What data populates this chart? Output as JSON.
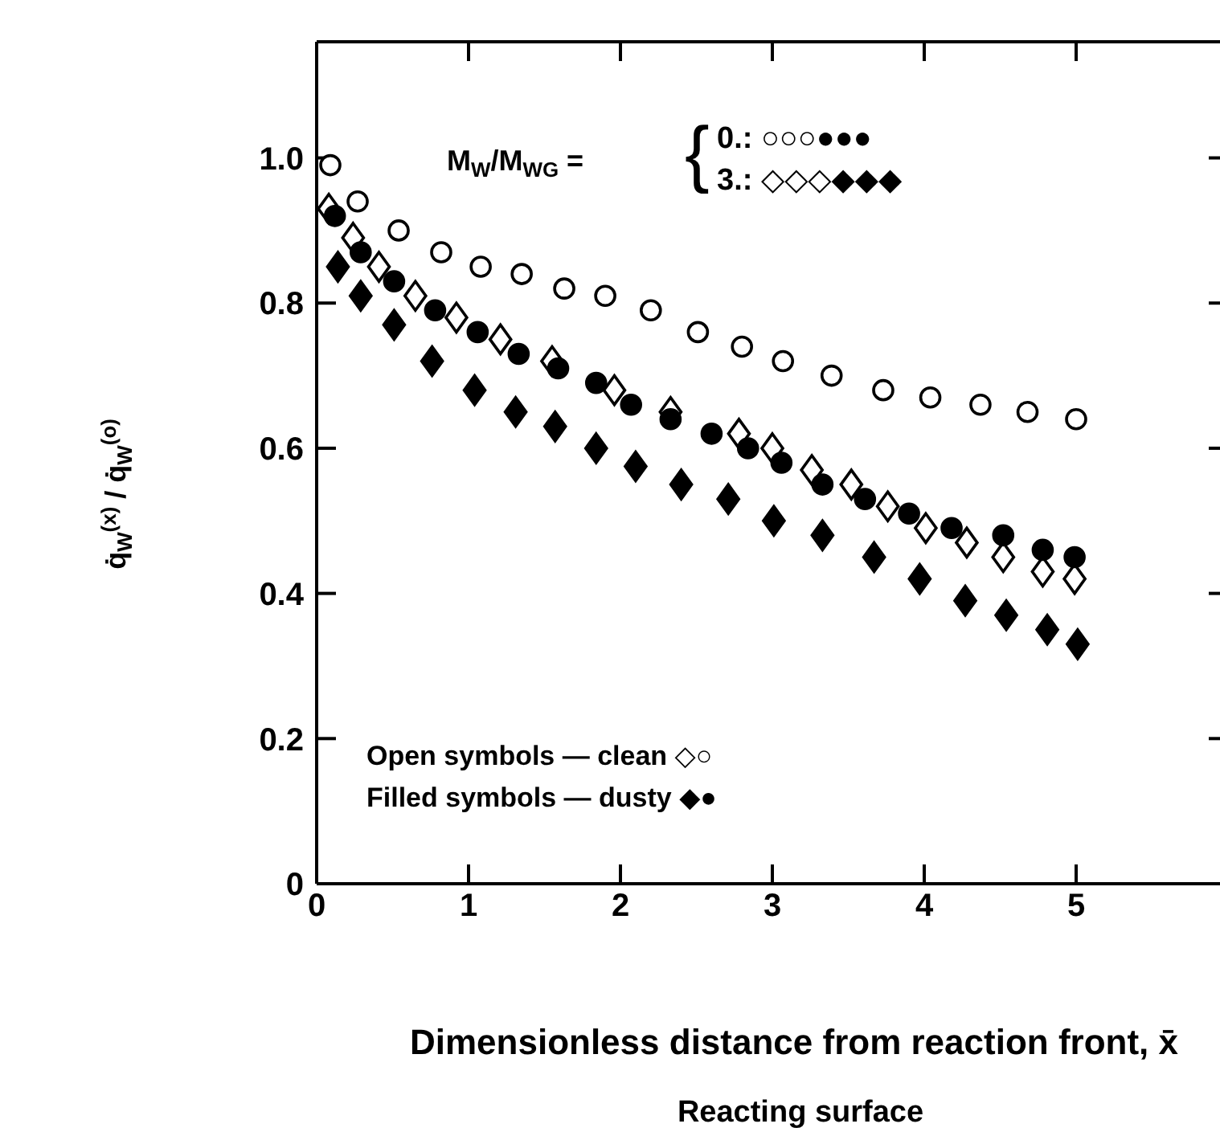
{
  "chart_data": {
    "type": "scatter",
    "xlabel": "Dimensionless distance from reaction front, x̄",
    "ylabel": "q̇$_{W}$$^{(x)}$ / q̇$_{W}$$^{(o)}$",
    "xlim": [
      0,
      6
    ],
    "xticks": [
      0,
      1,
      2,
      3,
      4,
      5
    ],
    "ylim": [
      0,
      1.16
    ],
    "yticks": [
      0,
      0.2,
      0.4,
      0.6,
      0.8,
      {
        "value": 1,
        "label": "1.0"
      }
    ],
    "annotations": [
      "M$_{W}$/M$_{WG}$ =",
      "{",
      "0.: ○○○●●●",
      "3.: ◇◇◇◆◆◆",
      "Open symbols — clean ◇○",
      "Filled symbols — dusty ◆●",
      "Reacting surface"
    ],
    "series": [
      {
        "color": "#ffffff",
        "marker": "circle",
        "x": [
          0.09,
          0.27,
          0.54,
          0.82,
          1.08,
          1.35,
          1.63,
          1.9,
          2.2,
          2.51,
          2.8,
          3.07,
          3.39,
          3.73,
          4.04,
          4.37,
          4.68,
          5.0
        ],
        "values": [
          0.99,
          0.94,
          0.9,
          0.87,
          0.85,
          0.84,
          0.82,
          0.81,
          0.79,
          0.76,
          0.74,
          0.72,
          0.7,
          0.68,
          0.67,
          0.66,
          0.65,
          0.64
        ]
      },
      {
        "color": "#ffffff",
        "marker": "diamond",
        "x": [
          0.08,
          0.24,
          0.41,
          0.65,
          0.92,
          1.21,
          1.55,
          1.96,
          2.33,
          2.78,
          3.0,
          3.26,
          3.52,
          3.76,
          4.01,
          4.28,
          4.52,
          4.78,
          4.99
        ],
        "values": [
          0.93,
          0.89,
          0.85,
          0.81,
          0.78,
          0.75,
          0.72,
          0.68,
          0.65,
          0.62,
          0.6,
          0.57,
          0.55,
          0.52,
          0.49,
          0.47,
          0.45,
          0.43,
          0.42
        ]
      },
      {
        "color": "#000000",
        "marker": "diamond",
        "x": [
          0.14,
          0.29,
          0.51,
          0.76,
          1.04,
          1.31,
          1.57,
          1.84,
          2.1,
          2.4,
          2.71,
          3.01,
          3.33,
          3.67,
          3.97,
          4.27,
          4.54,
          4.81,
          5.01
        ],
        "values": [
          0.85,
          0.81,
          0.77,
          0.72,
          0.68,
          0.65,
          0.63,
          0.6,
          0.575,
          0.55,
          0.53,
          0.5,
          0.48,
          0.45,
          0.42,
          0.39,
          0.37,
          0.35,
          0.33
        ]
      },
      {
        "color": "#000000",
        "marker": "circle",
        "x": [
          0.12,
          0.29,
          0.51,
          0.78,
          1.06,
          1.33,
          1.59,
          1.84,
          2.07,
          2.33,
          2.6,
          2.84,
          3.06,
          3.33,
          3.61,
          3.9,
          4.18,
          4.52,
          4.78,
          4.99
        ],
        "values": [
          0.92,
          0.87,
          0.83,
          0.79,
          0.76,
          0.73,
          0.71,
          0.69,
          0.66,
          0.64,
          0.62,
          0.6,
          0.58,
          0.55,
          0.53,
          0.51,
          0.49,
          0.48,
          0.46,
          0.45
        ]
      }
    ]
  }
}
